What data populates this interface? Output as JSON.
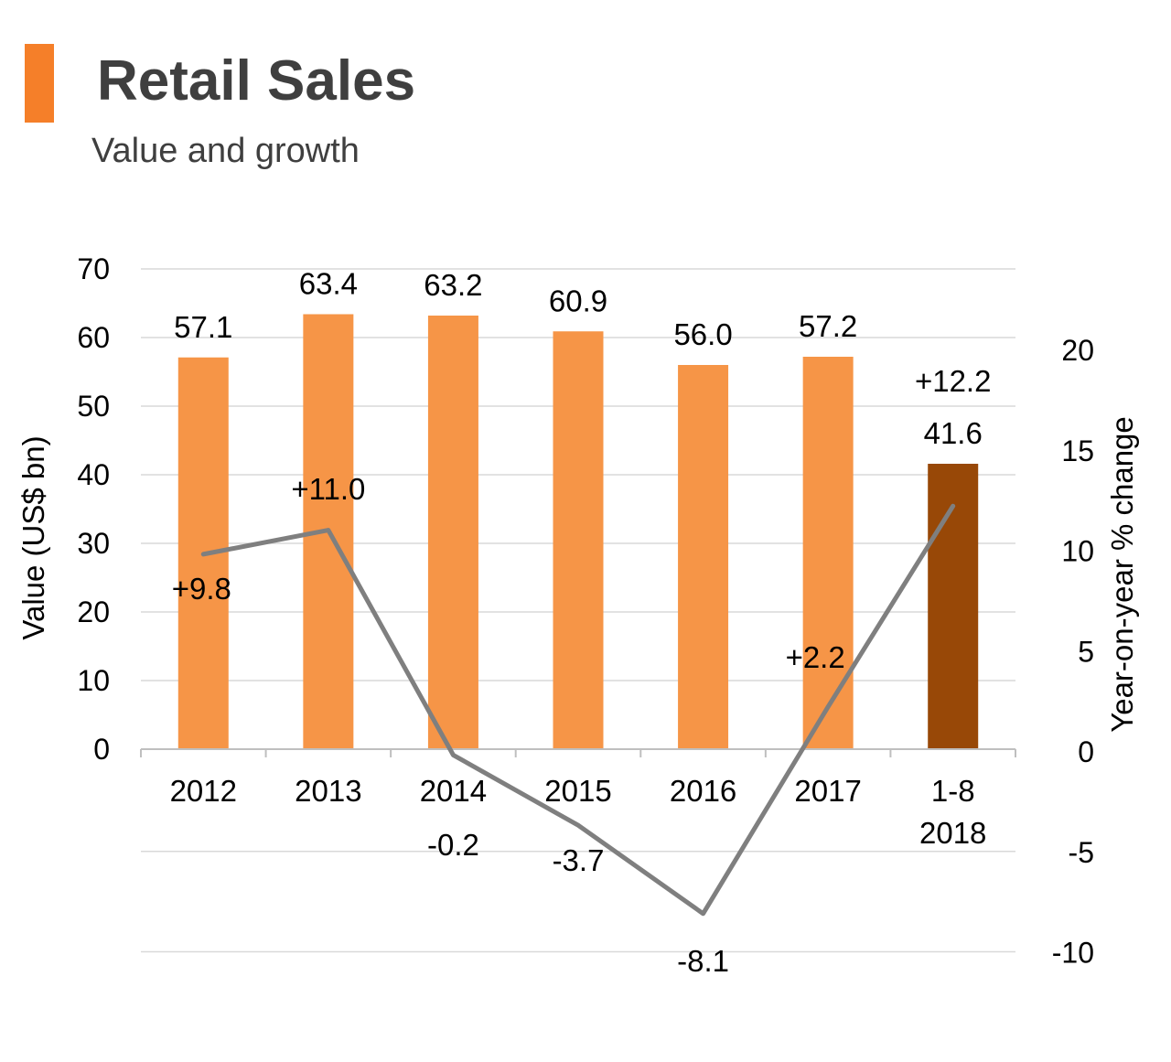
{
  "header": {
    "title": "Retail Sales",
    "subtitle": "Value and growth"
  },
  "colors": {
    "accent": "#f57f29",
    "bar": "#f69547",
    "bar_highlight": "#984807",
    "line": "#7f7f7f",
    "grid": "#d9d9d9",
    "text": "#3f3f3f"
  },
  "chart_data": {
    "type": "bar+line",
    "title": "Retail Sales",
    "subtitle": "Value and growth",
    "categories": [
      [
        "2012"
      ],
      [
        "2013"
      ],
      [
        "2014"
      ],
      [
        "2015"
      ],
      [
        "2016"
      ],
      [
        "2017"
      ],
      [
        "1-8",
        "2018"
      ]
    ],
    "series": [
      {
        "name": "Value (US$ bn)",
        "type": "bar",
        "axis": "left",
        "values": [
          57.1,
          63.4,
          63.2,
          60.9,
          56.0,
          57.2,
          41.6
        ],
        "labels": [
          "57.1",
          "63.4",
          "63.2",
          "60.9",
          "56.0",
          "57.2",
          "41.6"
        ],
        "highlight_index": 6
      },
      {
        "name": "Year-on-year % change",
        "type": "line",
        "axis": "right",
        "values": [
          9.8,
          11.0,
          -0.2,
          -3.7,
          -8.1,
          2.2,
          12.2
        ],
        "labels": [
          "+9.8",
          "+11.0",
          "-0.2",
          "-3.7",
          "-8.1",
          "+2.2",
          "+12.2"
        ]
      }
    ],
    "y_left": {
      "label": "Value (US$ bn)",
      "range": [
        0,
        70
      ],
      "ticks": [
        "0",
        "10",
        "20",
        "30",
        "40",
        "50",
        "60",
        "70"
      ]
    },
    "y_right": {
      "label": "Year-on-year % change",
      "range": [
        -10,
        20
      ],
      "ticks": [
        "-10",
        "-5",
        "0",
        "5",
        "10",
        "15",
        "20"
      ]
    },
    "grid": true,
    "legend": "none"
  }
}
